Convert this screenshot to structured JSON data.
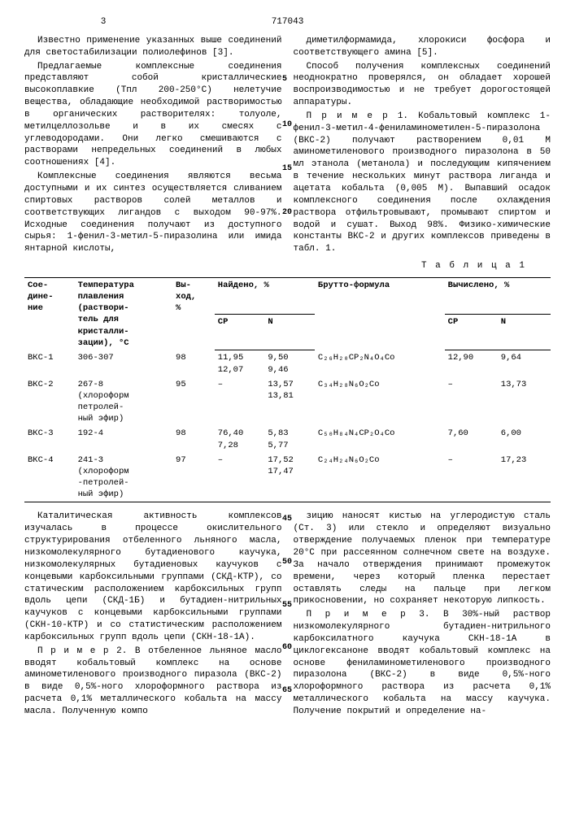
{
  "header": {
    "page_left": "3",
    "doc_number": "717043",
    "page_right": ""
  },
  "left_col": {
    "p1": "Известно применение указанных выше соединений для светостабилизации полиолефинов [3].",
    "p2": "Предлагаемые комплексные соединения представляют собой кристаллические высокоплавкие (Тпл 200-250°С) нелетучие вещества, обладающие необходимой растворимостью в органических растворителях: толуоле, метилцеллозольве и в их смесях с углеводородами. Они легко смешиваются с растворами непредельных соединений в любых соотношениях [4].",
    "p3": "Комплексные соединения являются весьма доступными и их синтез осуществляется сливанием спиртовых растворов солей металлов и соответствующих лигандов с выходом 90-97%. Исходные соединения получают из доступного сырья: 1-фенил-3-метил-5-пиразолина или имида янтарной кислоты,"
  },
  "right_col": {
    "p1": "диметилформамида, хлорокиси фосфора и соответствующего амина [5].",
    "p2": "Способ получения комплексных соединений неоднократно проверялся, он обладает хорошей воспроизводимостью и не требует дорогостоящей аппаратуры.",
    "p3": "П р и м е р 1. Кобальтовый комплекс 1-фенил-3-метил-4-фениламинометилен-5-пиразолона (ВКС-2) получают растворением 0,01 М аминометиленового производного пиразолона в 50 мл этанола (метанола) и последующим кипячением в течение нескольких минут раствора лиганда и ацетата кобальта (0,005 М). Выпавший осадок комплексного соединения после охлаждения раствора отфильтровывают, промывают спиртом и водой и сушат. Выход 98%. Физико-химические константы ВКС-2 и других комплексов приведены в табл. 1."
  },
  "margin_nums_top": [
    "5",
    "10",
    "15",
    "20"
  ],
  "table": {
    "caption": "Т а б л и ц а 1",
    "headers": {
      "c1": "Сое-\nдине-\nние",
      "c2": "Температура\nплавления\n(раствори-\nтель для\nкристалли-\nзации), °C",
      "c3": "Вы-\nход,\n%",
      "c4_group": "Найдено, %",
      "c4a": "CP",
      "c4b": "N",
      "c5": "Брутто-формула",
      "c6_group": "Вычислено, %",
      "c6a": "CP",
      "c6b": "N"
    },
    "colors": {
      "border": "#000000",
      "text": "#000000",
      "bg": "#ffffff"
    },
    "font_size": 10.5,
    "rows": [
      {
        "name": "ВКС-1",
        "tmp": "306-307",
        "yield": "98",
        "found_cp": "11,95\n12,07",
        "found_n": "9,50\n9,46",
        "formula": "C₂₆H₂₀CP₂N₄O₄Co",
        "calc_cp": "12,90",
        "calc_n": "9,64"
      },
      {
        "name": "ВКС-2",
        "tmp": "267-8\n(хлороформ\nпетролей-\nный эфир)",
        "yield": "95",
        "found_cp": "–",
        "found_n": "13,57\n13,81",
        "formula": "C₃₄H₂₈N₆O₂Co",
        "calc_cp": "–",
        "calc_n": "13,73"
      },
      {
        "name": "ВКС-3",
        "tmp": "192-4",
        "yield": "98",
        "found_cp": "76,40\n7,28",
        "found_n": "5,83\n5,77",
        "formula": "C₅₀H₈₄N₄CP₂O₄Co",
        "calc_cp": "7,60",
        "calc_n": "6,00"
      },
      {
        "name": "ВКС-4",
        "tmp": "241-3\n(хлороформ\n-петролей-\nный эфир)",
        "yield": "97",
        "found_cp": "–",
        "found_n": "17,52\n17,47",
        "formula": "C₂₄H₂₄N₆O₂Co",
        "calc_cp": "–",
        "calc_n": "17,23"
      }
    ]
  },
  "left_col2": {
    "p1": "Каталитическая активность комплексов изучалась в процессе окислительного структурирования отбеленного льняного масла, низкомолекулярного бутадиенового каучука, низкомолекулярных бутадиеновых каучуков с концевыми карбоксильными группами (СКД-КТР), со статическим расположением карбоксильных групп вдоль цепи (СКД-1Б) и бутадиен-нитрильных каучуков с концевыми карбоксильными группами (СКН-10-КТР) и со статистическим расположением карбоксильных групп вдоль цепи (СКН-18-1А).",
    "p2": "П р и м е р 2. В отбеленное льняное масло вводят кобальтовый комплекс на основе аминометиленового производного пиразола (ВКС-2) в виде 0,5%-ного хлороформного раствора из расчета 0,1% металлического кобальта на массу масла. Полученную компо"
  },
  "right_col2": {
    "p1": "зицию наносят кистью на углеродистую сталь (Ст. 3) или стекло и определяют визуально отверждение получаемых пленок при температуре 20°С при рассеянном солнечном свете на воздухе. За начало отверждения принимают промежуток времени, через который пленка перестает оставлять следы на пальце при легком прикосновении, но сохраняет некоторую липкость.",
    "p2": "П р и м е р 3. В 30%-ный раствор низкомолекулярного бутадиен-нитрильного карбоксилатного каучука СКН-18-1А в циклогексаноне вводят кобальтовый комплекс на основе фениламинометиленового производного пиразолона (ВКС-2) в виде 0,5%-ного хлороформного раствора из расчета 0,1% металлического кобальта на массу каучука. Получение покрытий и определение на-"
  },
  "margin_nums_bottom": [
    "45",
    "50",
    "55",
    "60",
    "65"
  ]
}
